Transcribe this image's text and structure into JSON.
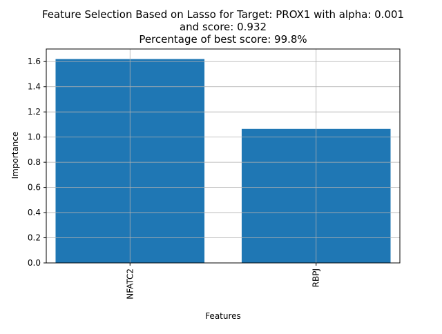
{
  "chart_data": {
    "type": "bar",
    "title_lines": [
      "Feature Selection Based on Lasso for Target: PROX1 with alpha: 0.001",
      "and score: 0.932",
      "Percentage of best score: 99.8%"
    ],
    "xlabel": "Features",
    "ylabel": "Importance",
    "categories": [
      "NFATC2",
      "RBPJ"
    ],
    "values": [
      1.62,
      1.065
    ],
    "ylim": [
      0,
      1.7
    ],
    "yticks": [
      0.0,
      0.2,
      0.4,
      0.6,
      0.8,
      1.0,
      1.2,
      1.4,
      1.6
    ],
    "grid": true,
    "bar_color": "#1f77b4",
    "grid_color": "#b0b0b0",
    "x_tick_rotation": "vertical"
  }
}
